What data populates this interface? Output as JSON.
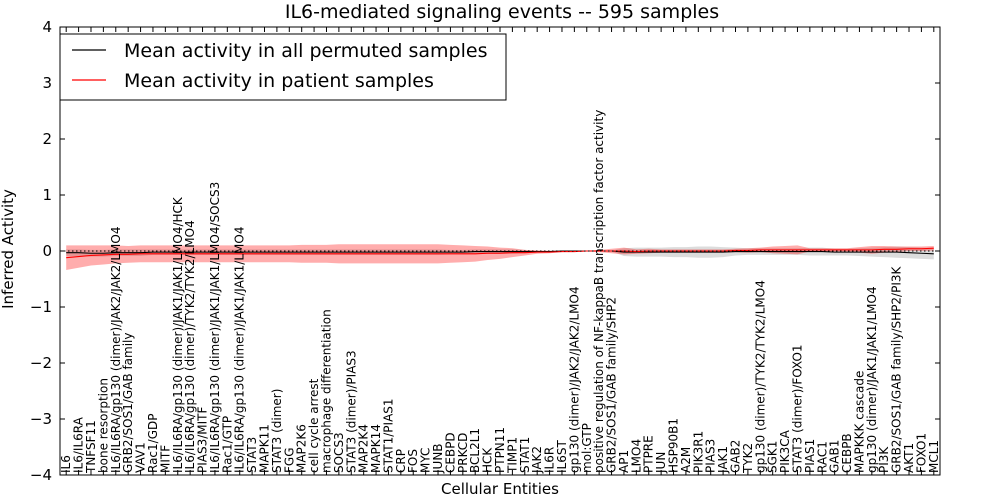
{
  "chart_data": {
    "type": "line",
    "title": "IL6-mediated signaling events -- 595 samples",
    "xlabel": "Cellular Entities",
    "ylabel": "Inferred Activity",
    "ylim": [
      -4,
      4
    ],
    "yticks": [
      -4,
      -3,
      -2,
      -1,
      0,
      1,
      2,
      3,
      4
    ],
    "grid": false,
    "legend_position": "top-left",
    "categories": [
      "IL6",
      "IL6/IL6RA",
      "TNFSF11",
      "bone resorption",
      "IL6/IL6RA/gp130 (dimer)/JAK2/JAK2/LMO4",
      "GRB2/SOS1/GAB family",
      "VAV1",
      "Rac1/GDP",
      "MITF",
      "IL6/IL6RA/gp130 (dimer)/JAK1/JAK1/LMO4/HCK",
      "IL6/IL6RA/gp130 (dimer)/TYK2/TYK2/LMO4",
      "PIAS3/MITF",
      "IL6/IL6RA/gp130 (dimer)/JAK1/JAK1/LMO4/SOCS3",
      "Rac1/GTP",
      "IL6/IL6RA/gp130 (dimer)/JAK1/JAK1/LMO4",
      "STAT3",
      "MAPK11",
      "STAT3 (dimer)",
      "FGG",
      "MAP2K6",
      "cell cycle arrest",
      "macrophage differentiation",
      "SOCS3",
      "STAT3 (dimer)/PIAS3",
      "MAP2K4",
      "MAPK14",
      "STAT1/PIAS1",
      "CRP",
      "FOS",
      "MYC",
      "JUNB",
      "CEBPD",
      "PRKCD",
      "BCL2L1",
      "HCK",
      "PTPN11",
      "TIMP1",
      "STAT1",
      "JAK2",
      "IL6R",
      "IL6ST",
      "gp130 (dimer)/JAK2/JAK2/LMO4",
      "mol:GTP",
      "positive regulation of NF-kappaB transcription factor activity",
      "GRB2/SOS1/GAB family/SHP2",
      "AP1",
      "LMO4",
      "PTPRE",
      "JUN",
      "HSP90B1",
      "A2M",
      "PIK3R1",
      "PIAS3",
      "JAK1",
      "GAB2",
      "TYK2",
      "gp130 (dimer)/TYK2/TYK2/LMO4",
      "SGK1",
      "PIK3CA",
      "STAT3 (dimer)/FOXO1",
      "PIAS1",
      "RAC1",
      "GAB1",
      "CEBPB",
      "MAPKKK cascade",
      "gp130 (dimer)/JAK1/JAK1/LMO4",
      "PI3K",
      "GRB2/SOS1/GAB family/SHP2/PI3K",
      "AKT1",
      "FOXO1",
      "MCL1"
    ],
    "series": [
      {
        "name": "Mean activity in all permuted samples",
        "color": "#000000",
        "values": [
          -0.03,
          -0.03,
          -0.04,
          -0.04,
          -0.03,
          -0.03,
          -0.03,
          -0.02,
          -0.02,
          -0.02,
          -0.02,
          -0.02,
          -0.02,
          -0.02,
          -0.02,
          -0.02,
          -0.02,
          -0.02,
          -0.02,
          -0.02,
          -0.02,
          -0.02,
          -0.02,
          -0.02,
          -0.02,
          -0.02,
          -0.02,
          -0.02,
          -0.02,
          -0.02,
          -0.02,
          -0.02,
          -0.02,
          -0.01,
          -0.01,
          -0.01,
          -0.01,
          -0.01,
          -0.01,
          -0.01,
          0.0,
          0.0,
          0.0,
          0.0,
          0.0,
          -0.02,
          -0.02,
          -0.02,
          -0.02,
          -0.02,
          -0.02,
          -0.02,
          -0.02,
          -0.02,
          -0.01,
          -0.01,
          -0.01,
          -0.01,
          -0.01,
          -0.01,
          -0.01,
          -0.01,
          -0.02,
          -0.02,
          -0.02,
          -0.02,
          -0.02,
          -0.02,
          -0.03,
          -0.04,
          -0.05
        ],
        "band": [
          0.06,
          0.06,
          0.06,
          0.06,
          0.06,
          0.06,
          0.06,
          0.05,
          0.05,
          0.05,
          0.05,
          0.05,
          0.05,
          0.05,
          0.05,
          0.05,
          0.05,
          0.05,
          0.05,
          0.05,
          0.05,
          0.05,
          0.05,
          0.05,
          0.05,
          0.05,
          0.05,
          0.05,
          0.05,
          0.05,
          0.05,
          0.04,
          0.04,
          0.04,
          0.04,
          0.04,
          0.04,
          0.03,
          0.02,
          0.02,
          0.01,
          0.01,
          0.01,
          0.01,
          0.01,
          0.07,
          0.08,
          0.08,
          0.08,
          0.09,
          0.09,
          0.1,
          0.1,
          0.09,
          0.07,
          0.06,
          0.06,
          0.06,
          0.06,
          0.06,
          0.07,
          0.07,
          0.06,
          0.06,
          0.07,
          0.08,
          0.09,
          0.1,
          0.1,
          0.1,
          0.1
        ]
      },
      {
        "name": "Mean activity in patient samples",
        "color": "#ff0000",
        "values": [
          -0.12,
          -0.1,
          -0.08,
          -0.07,
          -0.06,
          -0.06,
          -0.05,
          -0.05,
          -0.05,
          -0.05,
          -0.05,
          -0.05,
          -0.05,
          -0.05,
          -0.05,
          -0.05,
          -0.05,
          -0.05,
          -0.05,
          -0.05,
          -0.05,
          -0.05,
          -0.05,
          -0.05,
          -0.05,
          -0.05,
          -0.05,
          -0.05,
          -0.05,
          -0.05,
          -0.05,
          -0.05,
          -0.05,
          -0.05,
          -0.04,
          -0.04,
          -0.03,
          -0.03,
          -0.02,
          -0.02,
          -0.01,
          -0.01,
          0.0,
          0.0,
          0.0,
          0.0,
          -0.01,
          0.0,
          0.0,
          0.0,
          0.0,
          0.0,
          0.0,
          0.0,
          0.01,
          0.01,
          0.02,
          0.02,
          0.02,
          0.02,
          0.02,
          0.02,
          0.02,
          0.02,
          0.02,
          0.02,
          0.03,
          0.03,
          0.04,
          0.04,
          0.05
        ],
        "band": [
          0.22,
          0.2,
          0.18,
          0.17,
          0.16,
          0.15,
          0.15,
          0.15,
          0.15,
          0.15,
          0.15,
          0.15,
          0.15,
          0.15,
          0.15,
          0.15,
          0.15,
          0.15,
          0.15,
          0.16,
          0.16,
          0.16,
          0.17,
          0.17,
          0.17,
          0.17,
          0.17,
          0.17,
          0.17,
          0.17,
          0.17,
          0.16,
          0.15,
          0.14,
          0.12,
          0.1,
          0.08,
          0.05,
          0.03,
          0.02,
          0.01,
          0.01,
          0.01,
          0.02,
          0.04,
          0.06,
          0.04,
          0.04,
          0.03,
          0.03,
          0.03,
          0.03,
          0.03,
          0.03,
          0.03,
          0.04,
          0.04,
          0.06,
          0.07,
          0.08,
          0.03,
          0.03,
          0.03,
          0.03,
          0.05,
          0.07,
          0.06,
          0.05,
          0.04,
          0.04,
          0.04
        ]
      }
    ]
  }
}
